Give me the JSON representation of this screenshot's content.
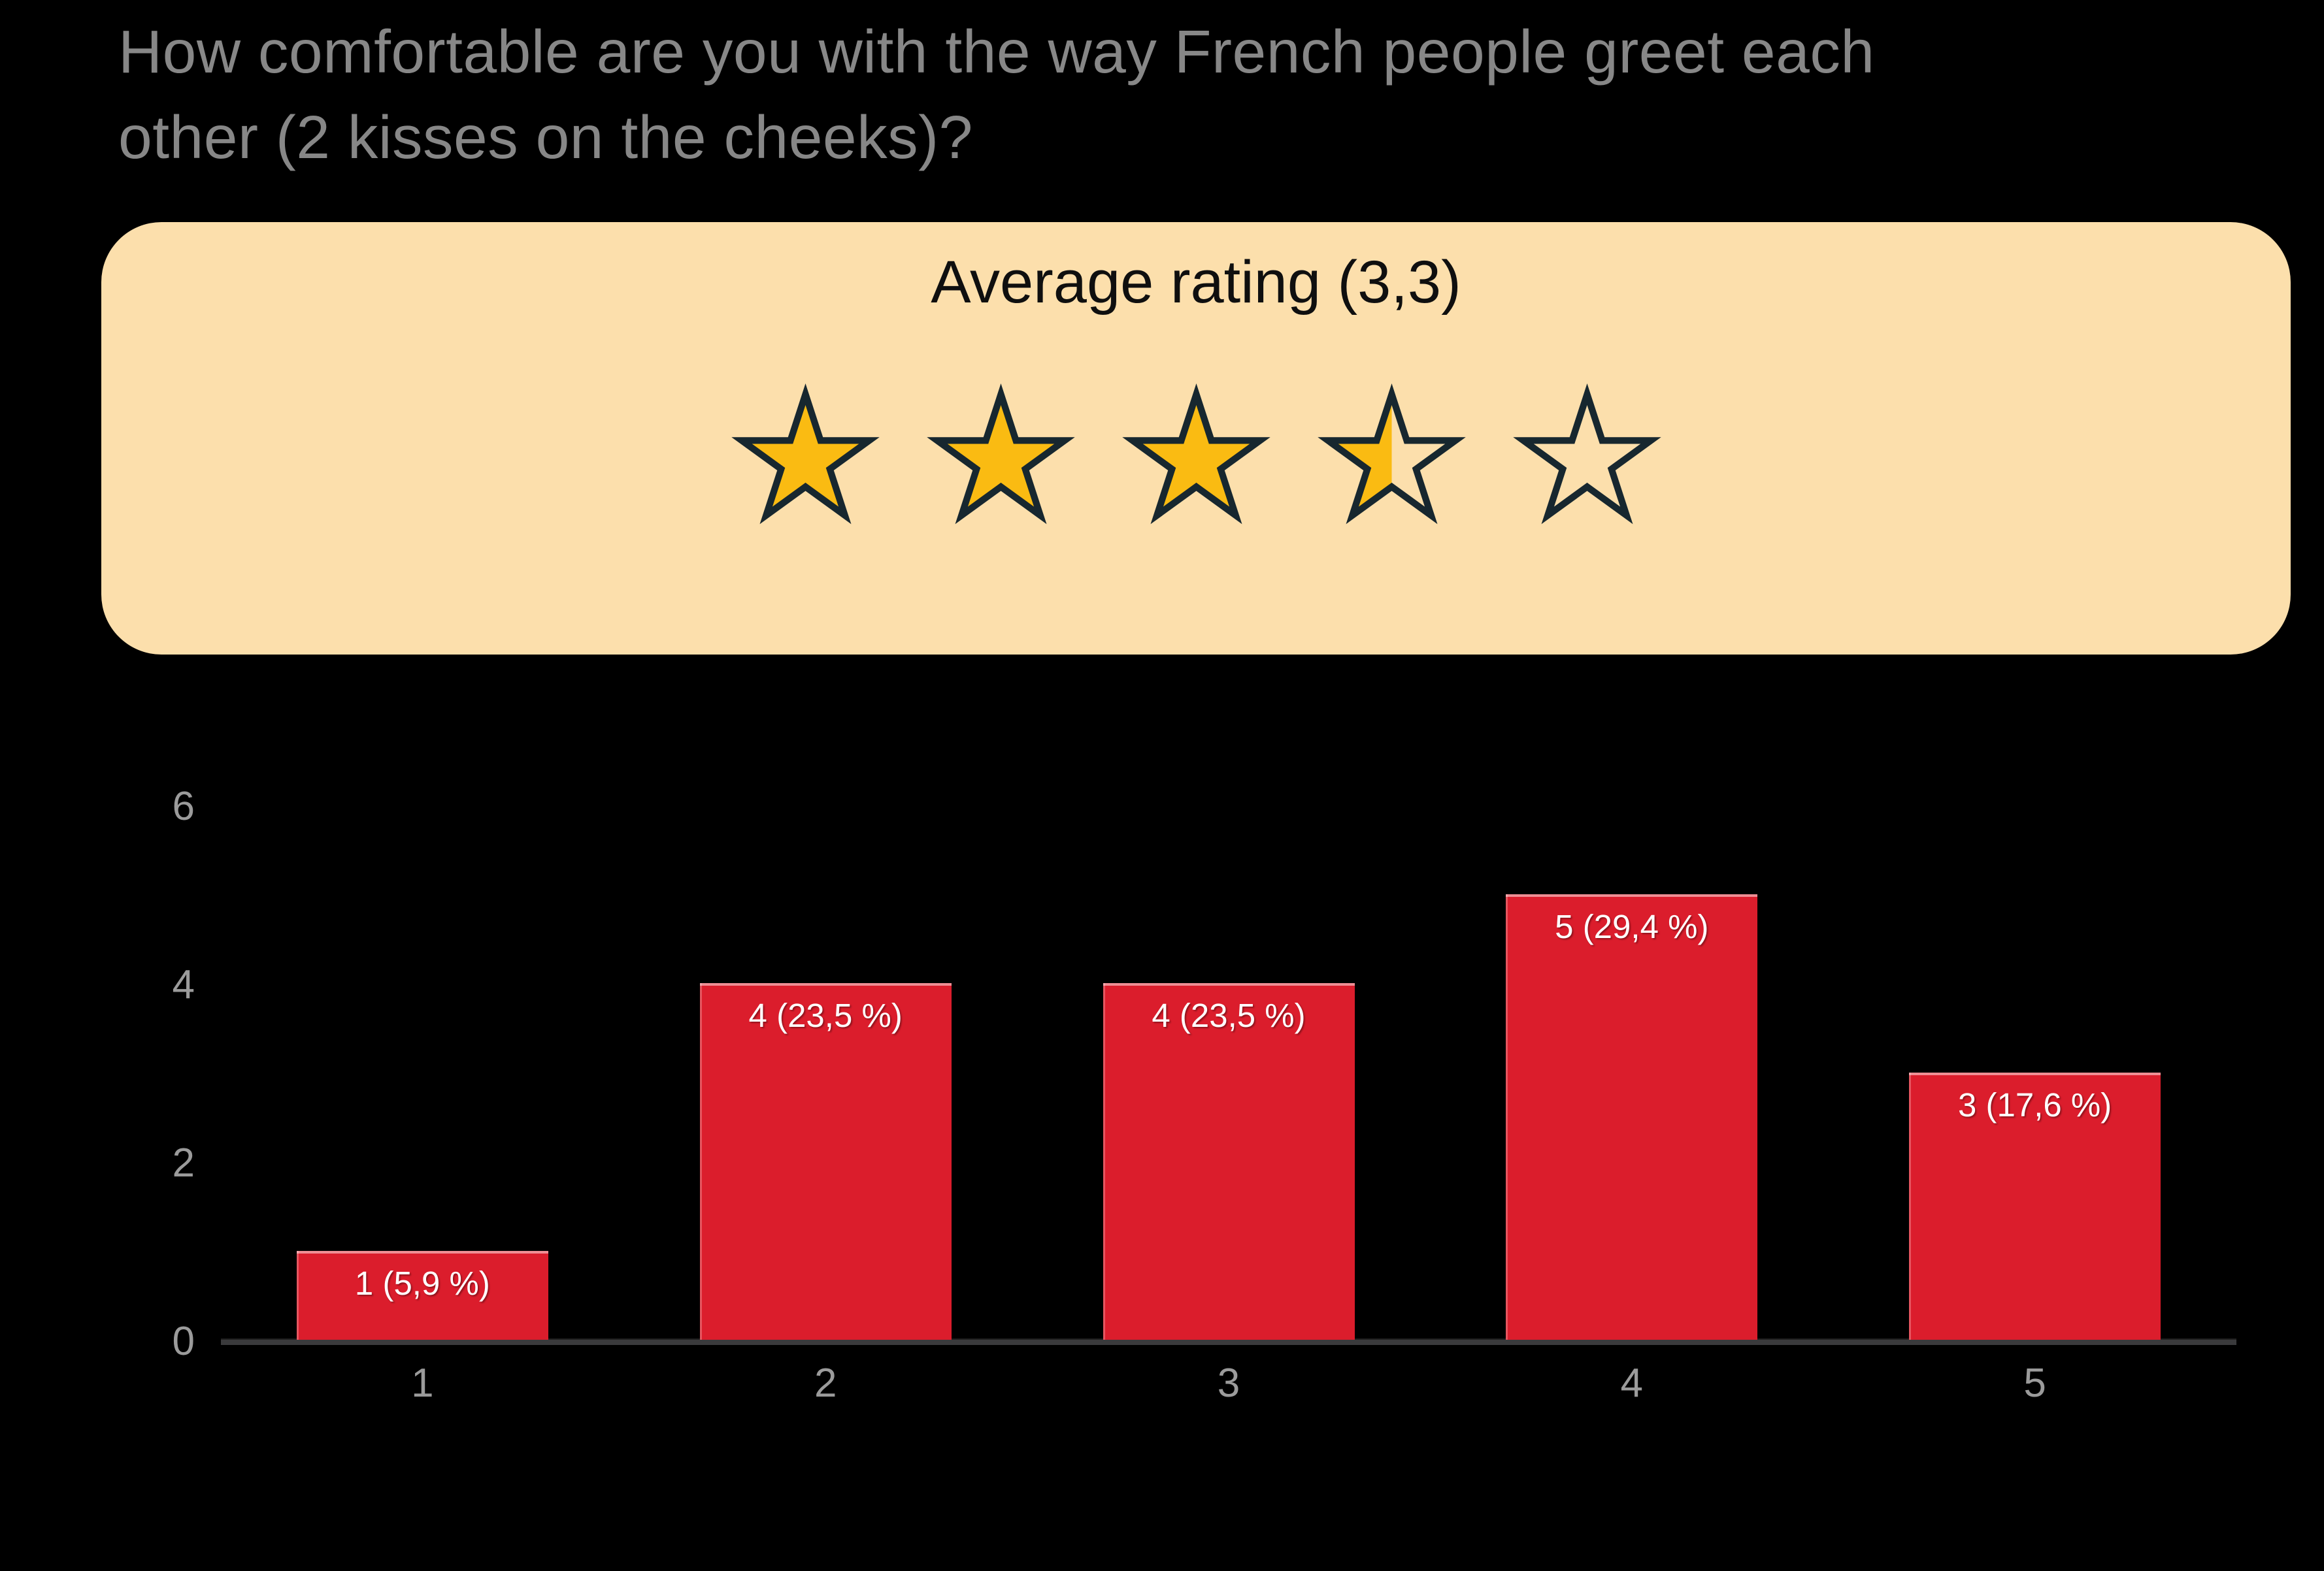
{
  "title": {
    "line1": "How comfortable are you with the way French people greet each",
    "line2": "other (2 kisses on the cheeks)?"
  },
  "rating_card": {
    "heading": "Average rating (3,3)",
    "average": "3,3",
    "max_stars": 5,
    "stars_fill": [
      1,
      1,
      1,
      0.5,
      0
    ]
  },
  "chart_data": {
    "type": "bar",
    "categories": [
      "1",
      "2",
      "3",
      "4",
      "5"
    ],
    "values": [
      1,
      4,
      4,
      5,
      3
    ],
    "bar_labels": [
      "1 (5,9 %)",
      "4 (23,5 %)",
      "4 (23,5 %)",
      "5 (29,4 %)",
      "3 (17,6 %)"
    ],
    "title": "",
    "xlabel": "",
    "ylabel": "",
    "ylim": [
      0,
      6
    ],
    "yticks": [
      0,
      2,
      4,
      6
    ],
    "grid": false,
    "legend": false
  },
  "colors": {
    "background": "#000000",
    "title_text": "#878787",
    "card_background": "#FCDFAC",
    "card_text": "#0F0F0F",
    "star_fill": "#FABB12",
    "star_outline": "#17272F",
    "bar_fill": "#DB1D2C",
    "bar_label_text": "#FFFFFF",
    "tick_text": "#9B9B9B",
    "axis_line": "#3A3A3C"
  }
}
